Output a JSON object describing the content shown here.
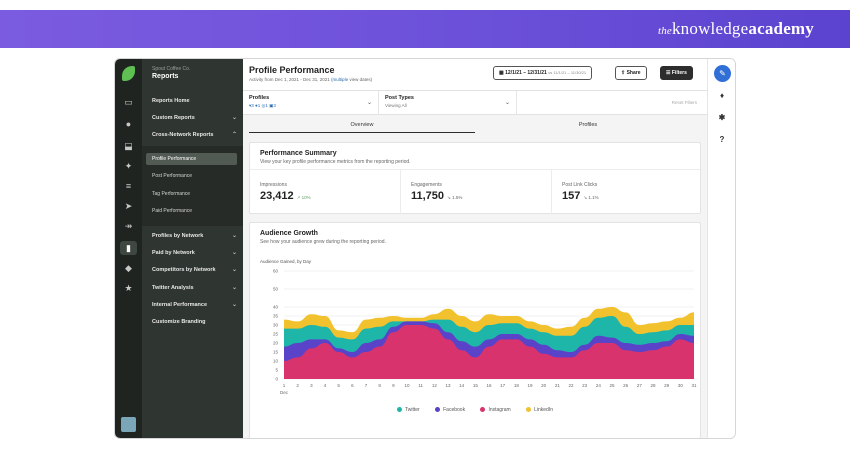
{
  "banner": {
    "logo_prefix": "the",
    "logo_word1": "knowledge",
    "logo_word2": "academy"
  },
  "sidebar": {
    "org_name": "Spout Coffee Co.",
    "section_title": "Reports",
    "items": [
      {
        "label": "Reports Home",
        "chevron": ""
      },
      {
        "label": "Custom Reports",
        "chevron": "⌄"
      },
      {
        "label": "Cross-Network Reports",
        "chevron": "⌃"
      }
    ],
    "sub_items": [
      "Profile Performance",
      "Post Performance",
      "Tag Performance",
      "Paid Performance"
    ],
    "items_lower": [
      {
        "label": "Profiles by Network",
        "chevron": "⌄"
      },
      {
        "label": "Paid by Network",
        "chevron": "⌄"
      },
      {
        "label": "Competitors by Network",
        "chevron": "⌄"
      },
      {
        "label": "Twitter Analysis",
        "chevron": "⌄"
      },
      {
        "label": "Internal Performance",
        "chevron": "⌄"
      },
      {
        "label": "Customize Branding",
        "chevron": ""
      }
    ]
  },
  "header": {
    "title": "Profile Performance",
    "subtitle_pre": "Activity from Dec 1, 2021 - Dec 31, 2021",
    "subtitle_link": "(multiple",
    "subtitle_post": "view dates)",
    "date_range": "12/1/21 – 12/31/21",
    "date_compare": "vs 11/1/21 – 11/30/21",
    "share_label": "Share",
    "filters_label": "Filters"
  },
  "filters": {
    "profiles_label": "Profiles",
    "profiles_value": "▾3  ●1  ◎1  ▣3",
    "post_types_label": "Post Types",
    "post_types_value": "Viewing All",
    "reset_label": "Reset Filters"
  },
  "tabs": [
    "Overview",
    "Profiles"
  ],
  "summary": {
    "title": "Performance Summary",
    "subtitle": "View your key profile performance metrics from the reporting period.",
    "metrics": [
      {
        "label": "Impressions",
        "value": "23,412",
        "delta": "↗ 10%",
        "dir": "up"
      },
      {
        "label": "Engagements",
        "value": "11,750",
        "delta": "↘ 1.5%",
        "dir": "down"
      },
      {
        "label": "Post Link Clicks",
        "value": "157",
        "delta": "↘ 1.1%",
        "dir": "down"
      }
    ]
  },
  "growth": {
    "title": "Audience Growth",
    "subtitle": "See how your audience grew during the reporting period.",
    "chart_label": "Audience Gained, by Day"
  },
  "colors": {
    "twitter": "#1fb6aa",
    "facebook": "#5a43c8",
    "instagram": "#d8336d",
    "linkedin": "#f2c12e",
    "accent": "#2f6fd6"
  },
  "chart_data": {
    "type": "area",
    "stacked": true,
    "xlabel": "",
    "ylabel": "",
    "x": [
      "1",
      "2",
      "3",
      "4",
      "5",
      "6",
      "7",
      "8",
      "9",
      "10",
      "11",
      "12",
      "13",
      "14",
      "15",
      "16",
      "17",
      "18",
      "19",
      "20",
      "21",
      "22",
      "23",
      "24",
      "25",
      "26",
      "27",
      "28",
      "29",
      "30",
      "31"
    ],
    "x_sublabel": "Dec",
    "ylim": [
      0,
      60
    ],
    "yticks": [
      0,
      5,
      10,
      15,
      20,
      25,
      30,
      35,
      40,
      50,
      60
    ],
    "series": [
      {
        "name": "Instagram",
        "color": "#d8336d",
        "values": [
          10,
          12,
          17,
          20,
          15,
          12,
          15,
          18,
          26,
          30,
          30,
          28,
          22,
          16,
          12,
          18,
          22,
          22,
          18,
          14,
          12,
          12,
          16,
          20,
          20,
          16,
          15,
          16,
          18,
          22,
          20
        ]
      },
      {
        "name": "Facebook",
        "color": "#5a43c8",
        "values": [
          8,
          8,
          5,
          2,
          2,
          3,
          5,
          4,
          3,
          2,
          2,
          3,
          4,
          5,
          6,
          4,
          3,
          3,
          4,
          5,
          4,
          3,
          3,
          4,
          3,
          4,
          4,
          4,
          3,
          3,
          4
        ]
      },
      {
        "name": "Twitter",
        "color": "#1fb6aa",
        "values": [
          10,
          8,
          8,
          7,
          6,
          7,
          8,
          7,
          3,
          0,
          0,
          2,
          7,
          8,
          8,
          8,
          6,
          6,
          6,
          7,
          8,
          9,
          10,
          10,
          12,
          9,
          6,
          6,
          6,
          5,
          6
        ]
      },
      {
        "name": "LinkedIn",
        "color": "#f2c12e",
        "values": [
          5,
          4,
          6,
          6,
          4,
          4,
          5,
          5,
          3,
          2,
          2,
          3,
          6,
          6,
          6,
          6,
          4,
          4,
          4,
          4,
          4,
          5,
          5,
          5,
          5,
          8,
          5,
          5,
          5,
          4,
          7
        ]
      }
    ]
  }
}
